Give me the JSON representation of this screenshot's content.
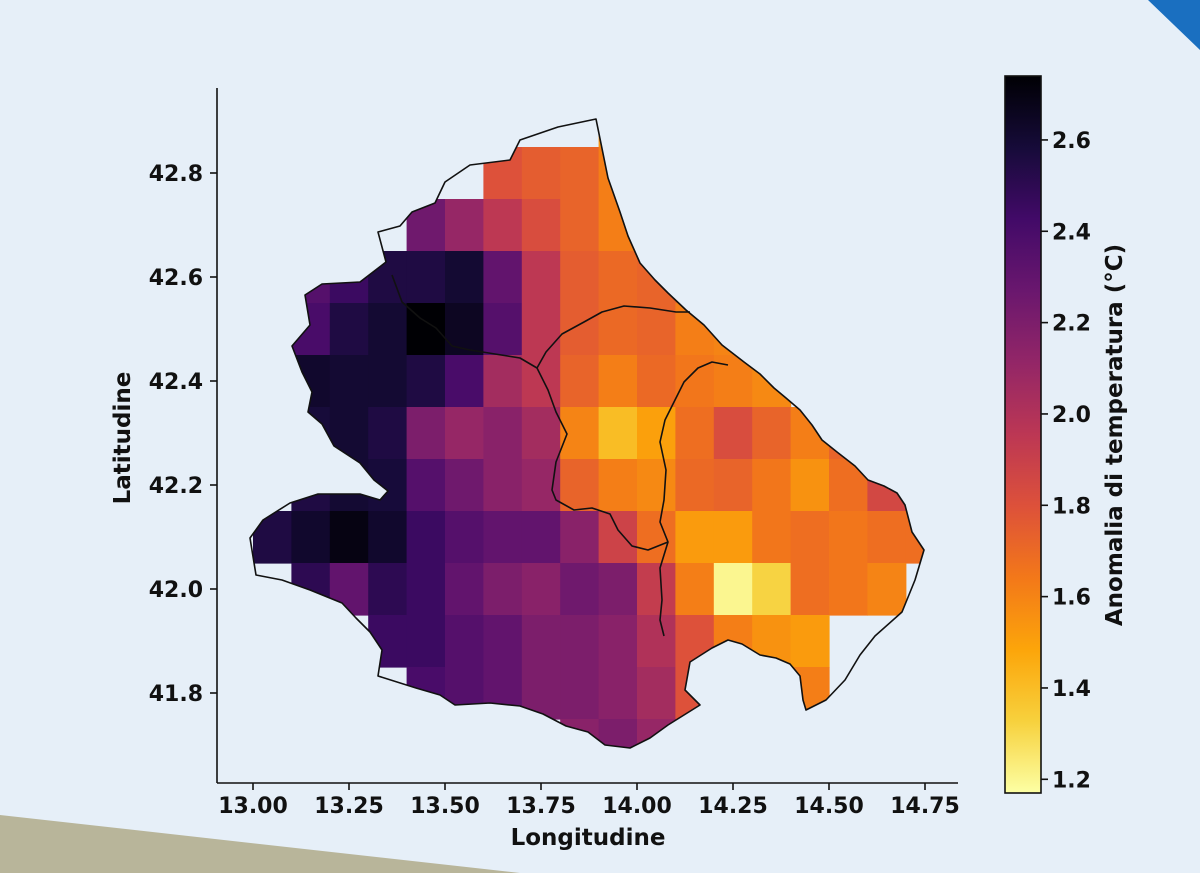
{
  "chart_data": {
    "type": "heatmap",
    "title": "",
    "xlabel": "Longitudine",
    "ylabel": "Latitudine",
    "xlim": [
      12.92,
      14.85
    ],
    "ylim": [
      41.68,
      42.96
    ],
    "x_ticks": [
      "13.00",
      "13.25",
      "13.50",
      "13.75",
      "14.00",
      "14.25",
      "14.50",
      "14.75"
    ],
    "y_ticks": [
      "41.8",
      "42.0",
      "42.2",
      "42.4",
      "42.6",
      "42.8"
    ],
    "colorbar": {
      "label": "Anomalia di temperatura (°C)",
      "colormap": "inferno",
      "range": [
        1.17,
        2.74
      ],
      "ticks": [
        "1.2",
        "1.4",
        "1.6",
        "1.8",
        "2.0",
        "2.2",
        "2.4",
        "2.6"
      ]
    },
    "grid": {
      "x_start": 13.05,
      "y_start": 41.7,
      "cell_width": 0.1,
      "cell_height": 0.1,
      "rows_top_to_bottom": [
        [
          null,
          null,
          null,
          null,
          null,
          null,
          null,
          null,
          null,
          1.55,
          1.75,
          null,
          null,
          null,
          null,
          null,
          null,
          null
        ],
        [
          null,
          null,
          null,
          null,
          null,
          null,
          1.8,
          1.75,
          1.72,
          1.62,
          1.8,
          null,
          null,
          null,
          null,
          null,
          null,
          null
        ],
        [
          null,
          null,
          null,
          null,
          2.25,
          2.1,
          1.95,
          1.82,
          1.72,
          1.62,
          1.65,
          1.72,
          null,
          null,
          null,
          null,
          null,
          null
        ],
        [
          null,
          2.35,
          2.45,
          2.55,
          2.55,
          2.6,
          2.3,
          1.95,
          1.75,
          1.7,
          1.72,
          1.72,
          1.8,
          null,
          null,
          null,
          null,
          null
        ],
        [
          null,
          2.4,
          2.55,
          2.6,
          2.74,
          2.65,
          2.35,
          1.95,
          1.75,
          1.7,
          1.72,
          1.62,
          1.6,
          null,
          null,
          null,
          null,
          null
        ],
        [
          null,
          2.62,
          2.6,
          2.6,
          2.55,
          2.4,
          2.05,
          1.95,
          1.72,
          1.62,
          1.7,
          1.65,
          1.62,
          1.58,
          null,
          null,
          null,
          null
        ],
        [
          null,
          2.58,
          2.6,
          2.55,
          2.2,
          2.1,
          2.15,
          2.05,
          1.6,
          1.4,
          1.5,
          1.68,
          1.82,
          1.72,
          1.62,
          1.72,
          null,
          null
        ],
        [
          null,
          2.55,
          2.6,
          2.58,
          2.35,
          2.25,
          2.15,
          2.1,
          1.72,
          1.62,
          1.58,
          1.7,
          1.72,
          1.65,
          1.55,
          1.68,
          1.85,
          null
        ],
        [
          2.55,
          2.62,
          2.7,
          2.62,
          2.45,
          2.35,
          2.3,
          2.3,
          2.15,
          1.88,
          1.68,
          1.52,
          1.52,
          1.65,
          1.68,
          1.65,
          1.68,
          1.68
        ],
        [
          null,
          2.5,
          2.3,
          2.5,
          2.45,
          2.3,
          2.2,
          2.15,
          2.25,
          2.2,
          1.92,
          1.62,
          1.2,
          1.32,
          1.68,
          1.65,
          1.6,
          null
        ],
        [
          null,
          null,
          null,
          2.45,
          2.45,
          2.35,
          2.3,
          2.2,
          2.2,
          2.15,
          2.0,
          1.8,
          1.62,
          1.55,
          1.52,
          null,
          null,
          null
        ],
        [
          null,
          null,
          null,
          null,
          2.4,
          2.35,
          2.3,
          2.2,
          2.2,
          2.15,
          2.05,
          1.8,
          null,
          null,
          1.62,
          null,
          null,
          null
        ],
        [
          null,
          null,
          null,
          null,
          null,
          null,
          null,
          null,
          2.15,
          2.2,
          2.1,
          null,
          null,
          null,
          null,
          null,
          null,
          null
        ]
      ]
    }
  },
  "decor": {
    "corner_color": "#1a6fc0",
    "bottom_color": "#b8b59a"
  }
}
